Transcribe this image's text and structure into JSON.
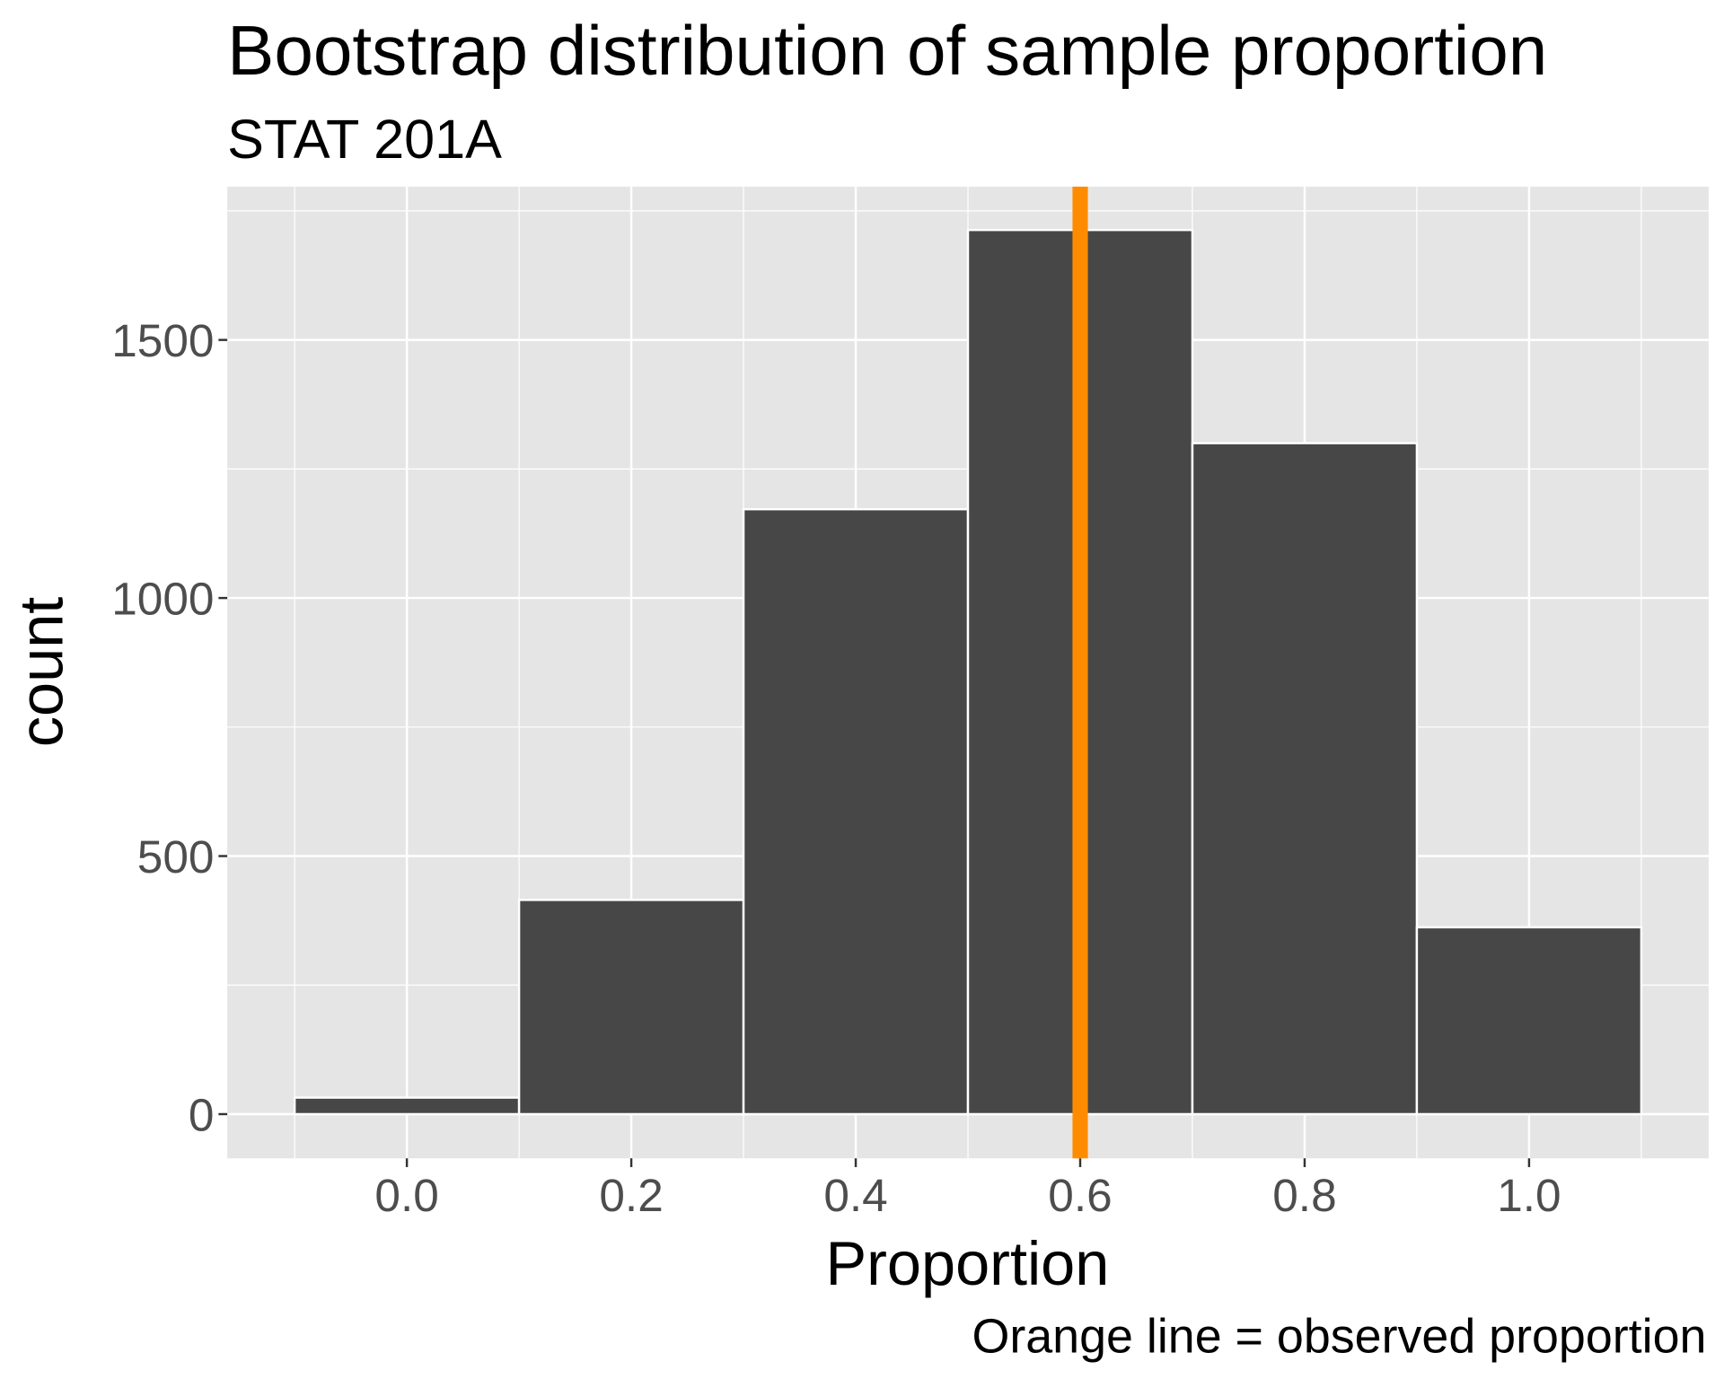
{
  "chart_data": {
    "type": "histogram",
    "title": "Bootstrap distribution of sample proportion",
    "subtitle": "STAT 201A",
    "x_label": "Proportion",
    "y_label": "count",
    "caption": "Orange line = observed proportion",
    "bins": [
      -0.1,
      0.1,
      0.3,
      0.5,
      0.7,
      0.9,
      1.1
    ],
    "counts": [
      32,
      415,
      1172,
      1713,
      1300,
      362
    ],
    "color": "#474747",
    "vline": {
      "x": 0.6,
      "color": "#ff8c00"
    },
    "xlim": [
      -0.16,
      1.16
    ],
    "ylim": [
      -85.6,
      1797
    ],
    "xticks": [
      {
        "value": 0,
        "label": "0.0"
      },
      0.2,
      0.4,
      0.6,
      0.8,
      {
        "value": 1,
        "label": "1.0"
      }
    ],
    "yticks": [
      0,
      500,
      1000,
      1500
    ],
    "grid": true
  }
}
